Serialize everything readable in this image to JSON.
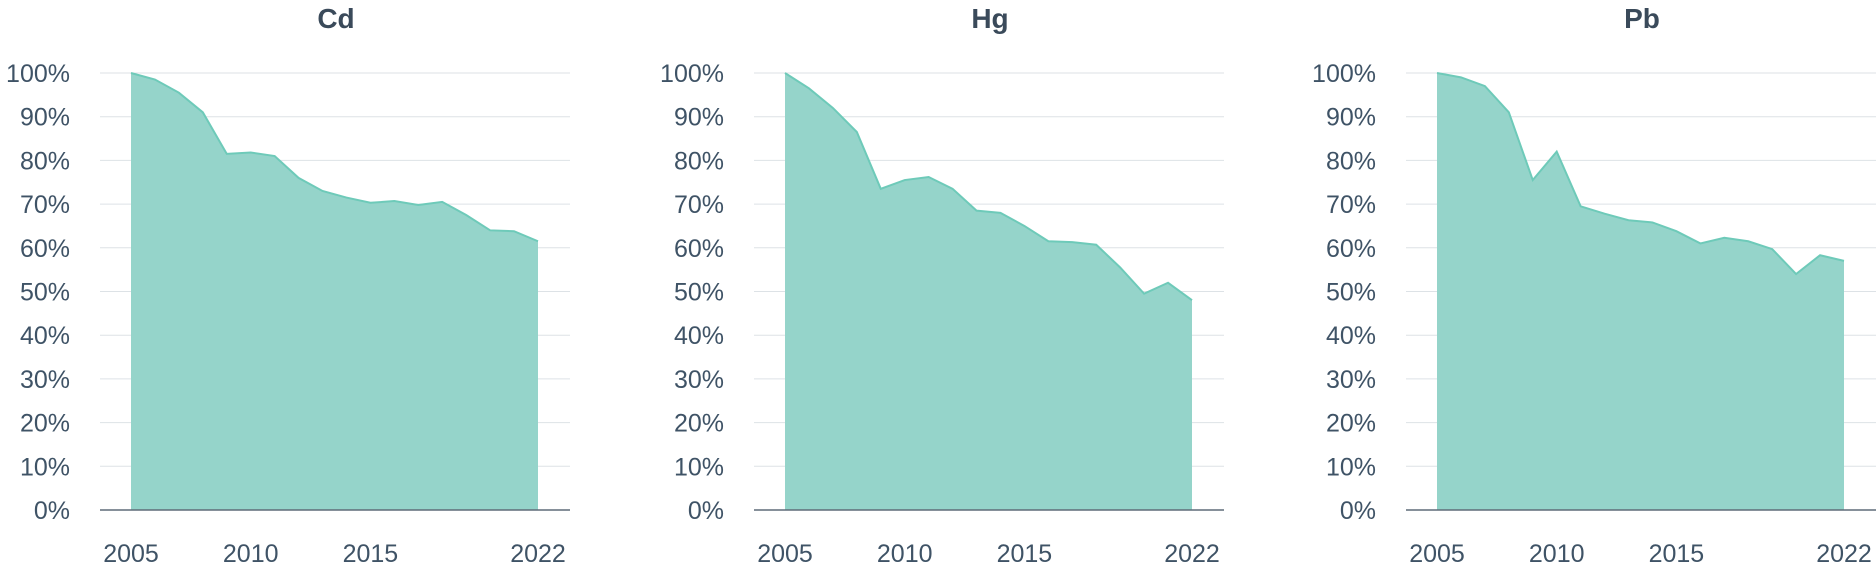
{
  "chart_data": [
    {
      "type": "area",
      "title": "Cd",
      "x": [
        2005,
        2006,
        2007,
        2008,
        2009,
        2010,
        2011,
        2012,
        2013,
        2014,
        2015,
        2016,
        2017,
        2018,
        2019,
        2020,
        2021,
        2022
      ],
      "y": [
        100,
        98.5,
        95.5,
        91,
        81.5,
        81.8,
        81,
        76,
        73,
        71.5,
        70.3,
        70.7,
        69.8,
        70.5,
        67.5,
        64,
        63.8,
        61.5
      ],
      "x_ticks": [
        "2005",
        "2010",
        "2015",
        "2022"
      ],
      "y_ticks": [
        "0%",
        "10%",
        "20%",
        "30%",
        "40%",
        "50%",
        "60%",
        "70%",
        "80%",
        "90%",
        "100%"
      ],
      "ylim": [
        0,
        100
      ],
      "xlim": [
        2005,
        2022
      ],
      "grid": true,
      "color": "#95d4ca",
      "line_color": "#6ecab9"
    },
    {
      "type": "area",
      "title": "Hg",
      "x": [
        2005,
        2006,
        2007,
        2008,
        2009,
        2010,
        2011,
        2012,
        2013,
        2014,
        2015,
        2016,
        2017,
        2018,
        2019,
        2020,
        2021,
        2022
      ],
      "y": [
        100,
        96.5,
        92,
        86.5,
        73.5,
        75.5,
        76.2,
        73.5,
        68.5,
        68,
        65,
        61.5,
        61.3,
        60.7,
        55.5,
        49.5,
        52,
        48
      ],
      "x_ticks": [
        "2005",
        "2010",
        "2015",
        "2022"
      ],
      "y_ticks": [
        "0%",
        "10%",
        "20%",
        "30%",
        "40%",
        "50%",
        "60%",
        "70%",
        "80%",
        "90%",
        "100%"
      ],
      "ylim": [
        0,
        100
      ],
      "xlim": [
        2005,
        2022
      ],
      "grid": true,
      "color": "#95d4ca",
      "line_color": "#6ecab9"
    },
    {
      "type": "area",
      "title": "Pb",
      "x": [
        2005,
        2006,
        2007,
        2008,
        2009,
        2010,
        2011,
        2012,
        2013,
        2014,
        2015,
        2016,
        2017,
        2018,
        2019,
        2020,
        2021,
        2022
      ],
      "y": [
        100,
        99,
        97,
        91,
        75.5,
        82,
        69.5,
        67.8,
        66.3,
        65.8,
        63.8,
        61,
        62.3,
        61.5,
        59.7,
        54,
        58.3,
        57
      ],
      "x_ticks": [
        "2005",
        "2010",
        "2015",
        "2022"
      ],
      "y_ticks": [
        "0%",
        "10%",
        "20%",
        "30%",
        "40%",
        "50%",
        "60%",
        "70%",
        "80%",
        "90%",
        "100%"
      ],
      "ylim": [
        0,
        100
      ],
      "xlim": [
        2005,
        2022
      ],
      "grid": true,
      "color": "#95d4ca",
      "line_color": "#6ecab9"
    }
  ]
}
